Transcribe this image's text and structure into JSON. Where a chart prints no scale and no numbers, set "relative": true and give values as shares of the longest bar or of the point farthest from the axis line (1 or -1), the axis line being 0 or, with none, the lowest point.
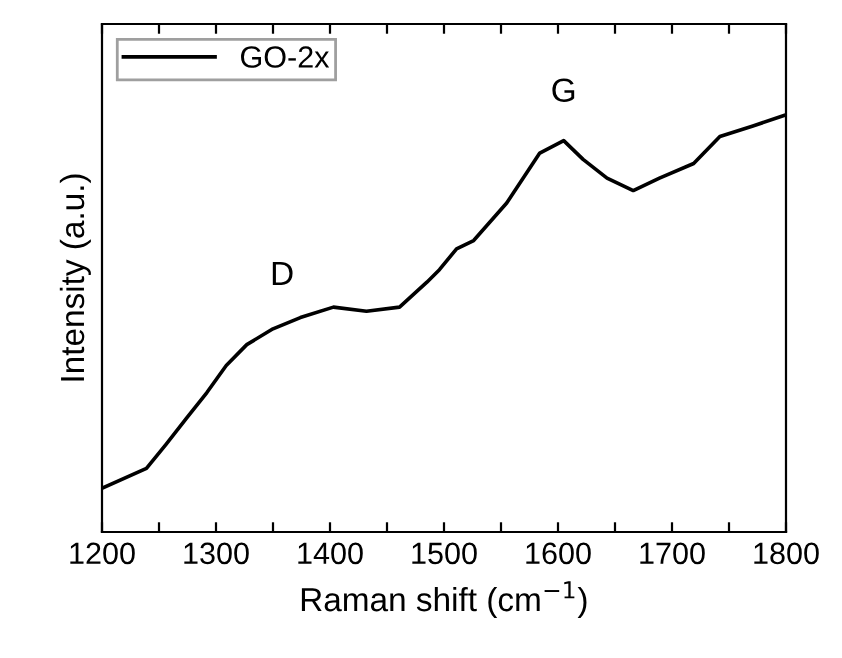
{
  "chart_data": {
    "type": "line",
    "relative": true,
    "xlabel": "Raman shift (cm$^{−1}$)",
    "ylabel": "Intensity (a.u.)",
    "x": [
      1200,
      1239,
      1256,
      1274,
      1292,
      1309,
      1327,
      1350,
      1374,
      1403,
      1432,
      1461,
      1485,
      1496,
      1511,
      1526,
      1555,
      1584,
      1605,
      1622,
      1643,
      1666,
      1689,
      1719,
      1742,
      1771,
      1798
    ],
    "series": [
      {
        "name": "GO-2x",
        "color": "#000000",
        "values": [
          0.105,
          0.153,
          0.21,
          0.273,
          0.335,
          0.4,
          0.45,
          0.488,
          0.515,
          0.54,
          0.53,
          0.54,
          0.6,
          0.63,
          0.68,
          0.7,
          0.79,
          0.91,
          0.94,
          0.895,
          0.85,
          0.82,
          0.85,
          0.885,
          0.95,
          0.975,
          1.0
        ]
      }
    ],
    "xlim": [
      1200,
      1800
    ],
    "xticks": [
      1200,
      {
        "value": 1250,
        "label": null
      },
      1300,
      {
        "value": 1350,
        "label": null
      },
      1400,
      {
        "value": 1450,
        "label": null
      },
      1500,
      {
        "value": 1550,
        "label": null
      },
      1600,
      {
        "value": 1650,
        "label": null
      },
      1700,
      {
        "value": 1750,
        "label": null
      },
      1800
    ],
    "annotations": [
      {
        "text": "D",
        "x": 1358,
        "y": 0.5
      },
      {
        "text": "G",
        "x": 1605,
        "y": 0.94
      }
    ],
    "legend": "top left",
    "grid": false,
    "marker": "none",
    "line_style": "solid"
  }
}
